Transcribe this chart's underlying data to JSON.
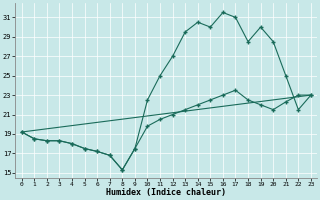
{
  "xlabel": "Humidex (Indice chaleur)",
  "background_color": "#c8e8e8",
  "line_color": "#1a6b5a",
  "xlim": [
    -0.5,
    23.5
  ],
  "ylim": [
    14.5,
    32.5
  ],
  "yticks": [
    15,
    17,
    19,
    21,
    23,
    25,
    27,
    29,
    31
  ],
  "xticks": [
    0,
    1,
    2,
    3,
    4,
    5,
    6,
    7,
    8,
    9,
    10,
    11,
    12,
    13,
    14,
    15,
    16,
    17,
    18,
    19,
    20,
    21,
    22,
    23
  ],
  "line1_x": [
    0,
    1,
    2,
    3,
    4,
    5,
    6,
    7,
    8,
    9,
    10,
    11,
    12,
    13,
    14,
    15,
    16,
    17,
    18,
    19,
    20,
    21,
    22,
    23
  ],
  "line1_y": [
    19.2,
    18.5,
    18.3,
    18.3,
    18.0,
    17.5,
    17.2,
    16.8,
    15.3,
    17.5,
    19.8,
    20.5,
    21.0,
    21.5,
    22.0,
    22.5,
    23.0,
    23.5,
    22.5,
    22.0,
    21.5,
    22.3,
    23.0,
    23.0
  ],
  "line2_x": [
    0,
    1,
    2,
    3,
    4,
    5,
    6,
    7,
    8,
    9,
    10,
    11,
    12,
    13,
    14,
    15,
    16,
    17,
    18,
    19,
    20,
    21,
    22,
    23
  ],
  "line2_y": [
    19.2,
    18.5,
    18.3,
    18.3,
    18.0,
    17.5,
    17.2,
    16.8,
    15.3,
    17.5,
    22.5,
    25.0,
    27.0,
    29.5,
    30.5,
    30.0,
    31.5,
    31.0,
    28.5,
    30.0,
    28.5,
    25.0,
    21.5,
    23.0
  ],
  "line3_x": [
    0,
    23
  ],
  "line3_y": [
    19.2,
    23.0
  ]
}
